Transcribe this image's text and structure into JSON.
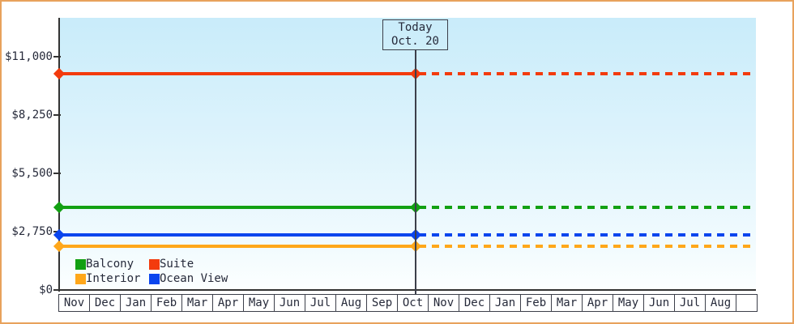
{
  "frame": {
    "border_color": "#e8a25c",
    "background": "#ffffff"
  },
  "plot": {
    "bg_top_color": "#c9ecfa",
    "bg_bottom_color": "#fcffff",
    "axis_color": "#333333",
    "text_color": "#262a3a"
  },
  "today_box": {
    "line1": "Today",
    "line2": "Oct. 20"
  },
  "legend": {
    "items": [
      {
        "label": "Balcony",
        "color": "#12a012"
      },
      {
        "label": "Suite",
        "color": "#f33b0d"
      },
      {
        "label": "Interior",
        "color": "#ffa71a"
      },
      {
        "label": "Ocean View",
        "color": "#0a45ee"
      }
    ]
  },
  "chart_data": {
    "type": "line",
    "title": "",
    "xlabel": "",
    "ylabel": "",
    "grid": false,
    "legend_position": "bottom-left",
    "categories": [
      "Nov",
      "Dec",
      "Jan",
      "Feb",
      "Mar",
      "Apr",
      "May",
      "Jun",
      "Jul",
      "Aug",
      "Sep",
      "Oct",
      "Nov",
      "Dec",
      "Jan",
      "Feb",
      "Mar",
      "Apr",
      "May",
      "Jun",
      "Jul",
      "Aug"
    ],
    "y_ticks": [
      {
        "label": "$0",
        "value": 0
      },
      {
        "label": "$2,750",
        "value": 2750
      },
      {
        "label": "$5,500",
        "value": 5500
      },
      {
        "label": "$8,250",
        "value": 8250
      },
      {
        "label": "$11,000",
        "value": 11000
      }
    ],
    "ylim": [
      0,
      12850
    ],
    "today": {
      "label": "Today",
      "date": "Oct. 20",
      "month_index": 11,
      "day_fraction": 0.58
    },
    "series": [
      {
        "name": "Suite",
        "color": "#f33b0d",
        "value": 10200,
        "style": "solid-past-dashed-future"
      },
      {
        "name": "Balcony",
        "color": "#12a012",
        "value": 3900,
        "style": "solid-past-dashed-future"
      },
      {
        "name": "Ocean View",
        "color": "#0a45ee",
        "value": 2600,
        "style": "solid-past-dashed-future"
      },
      {
        "name": "Interior",
        "color": "#ffa71a",
        "value": 2050,
        "style": "solid-past-dashed-future"
      }
    ]
  }
}
